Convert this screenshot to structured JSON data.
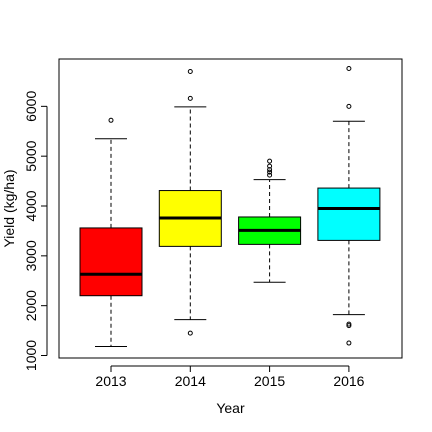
{
  "chart_data": {
    "type": "box",
    "xlabel": "Year",
    "ylabel": "Yield (kg/ha)",
    "categories": [
      "2013",
      "2014",
      "2015",
      "2016"
    ],
    "colors": [
      "#ff0000",
      "#ffff00",
      "#00ff00",
      "#00ffff"
    ],
    "yticks": [
      1000,
      2000,
      3000,
      4000,
      5000,
      6000
    ],
    "ylim": [
      950,
      6950
    ],
    "boxes": [
      {
        "category": "2013",
        "whisker_low": 1180,
        "q1": 2200,
        "median": 2630,
        "q3": 3560,
        "whisker_high": 5350,
        "outliers": [
          5720
        ]
      },
      {
        "category": "2014",
        "whisker_low": 1720,
        "q1": 3190,
        "median": 3760,
        "q3": 4310,
        "whisker_high": 5990,
        "outliers": [
          1450,
          6160,
          6700
        ]
      },
      {
        "category": "2015",
        "whisker_low": 2470,
        "q1": 3230,
        "median": 3510,
        "q3": 3780,
        "whisker_high": 4530,
        "outliers": [
          4620,
          4680,
          4730,
          4800,
          4900
        ]
      },
      {
        "category": "2016",
        "whisker_low": 1820,
        "q1": 3310,
        "median": 3950,
        "q3": 4360,
        "whisker_high": 5700,
        "outliers": [
          1250,
          1600,
          1630,
          6000,
          6760
        ]
      }
    ],
    "grid": false,
    "legend": "none"
  }
}
